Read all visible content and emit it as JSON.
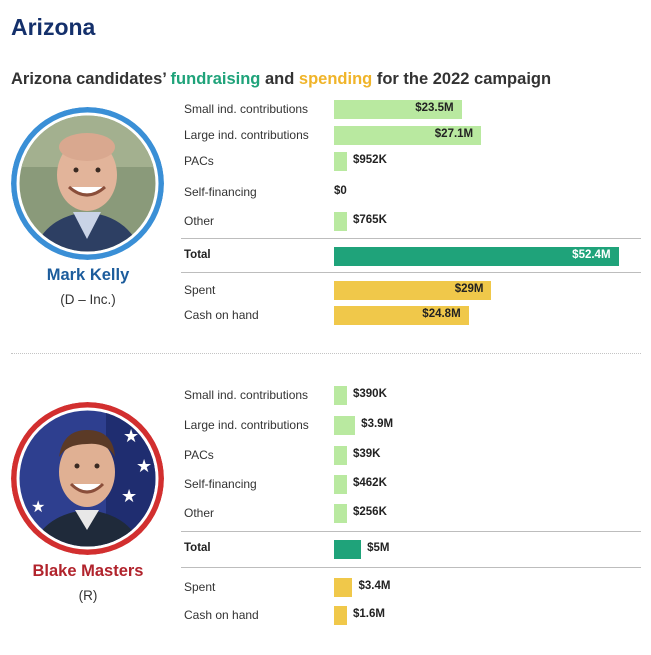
{
  "page": {
    "title": "Arizona",
    "subtitle_start": "Arizona candidates’ ",
    "subtitle_fund": "fundraising",
    "subtitle_and": " and ",
    "subtitle_spend": "spending",
    "subtitle_end": " for the 2022 campaign"
  },
  "colors": {
    "contributions": "#b9e9a0",
    "total": "#1fa37a",
    "spending": "#f0c84a",
    "kelly_ring": "#3a8fd6",
    "masters_ring": "#d22f2f",
    "kelly_name": "#1c5c9c",
    "masters_name": "#b1232c"
  },
  "chart_data": [
    {
      "type": "bar",
      "candidate": "Mark Kelly",
      "party": "(D – Inc.)",
      "rows": [
        {
          "label": "Small ind. contributions",
          "value": 23.5,
          "display": "$23.5M",
          "kind": "contrib"
        },
        {
          "label": "Large ind. contributions",
          "value": 27.1,
          "display": "$27.1M",
          "kind": "contrib"
        },
        {
          "label": "PACs",
          "value": 0.952,
          "display": "$952K",
          "kind": "contrib"
        },
        {
          "label": "Self-financing",
          "value": 0,
          "display": "$0",
          "kind": "contrib"
        },
        {
          "label": "Other",
          "value": 0.765,
          "display": "$765K",
          "kind": "contrib"
        },
        {
          "label": "Total",
          "value": 52.4,
          "display": "$52.4M",
          "kind": "total"
        },
        {
          "label": "Spent",
          "value": 29,
          "display": "$29M",
          "kind": "spend"
        },
        {
          "label": "Cash on hand",
          "value": 24.8,
          "display": "$24.8M",
          "kind": "spend"
        }
      ],
      "unit": "millions of dollars"
    },
    {
      "type": "bar",
      "candidate": "Blake Masters",
      "party": "(R)",
      "rows": [
        {
          "label": "Small ind. contributions",
          "value": 0.39,
          "display": "$390K",
          "kind": "contrib"
        },
        {
          "label": "Large ind. contributions",
          "value": 3.9,
          "display": "$3.9M",
          "kind": "contrib"
        },
        {
          "label": "PACs",
          "value": 0.039,
          "display": "$39K",
          "kind": "contrib"
        },
        {
          "label": "Self-financing",
          "value": 0.462,
          "display": "$462K",
          "kind": "contrib"
        },
        {
          "label": "Other",
          "value": 0.256,
          "display": "$256K",
          "kind": "contrib"
        },
        {
          "label": "Total",
          "value": 5,
          "display": "$5M",
          "kind": "total"
        },
        {
          "label": "Spent",
          "value": 3.4,
          "display": "$3.4M",
          "kind": "spend"
        },
        {
          "label": "Cash on hand",
          "value": 1.6,
          "display": "$1.6M",
          "kind": "spend"
        }
      ],
      "unit": "millions of dollars"
    }
  ]
}
